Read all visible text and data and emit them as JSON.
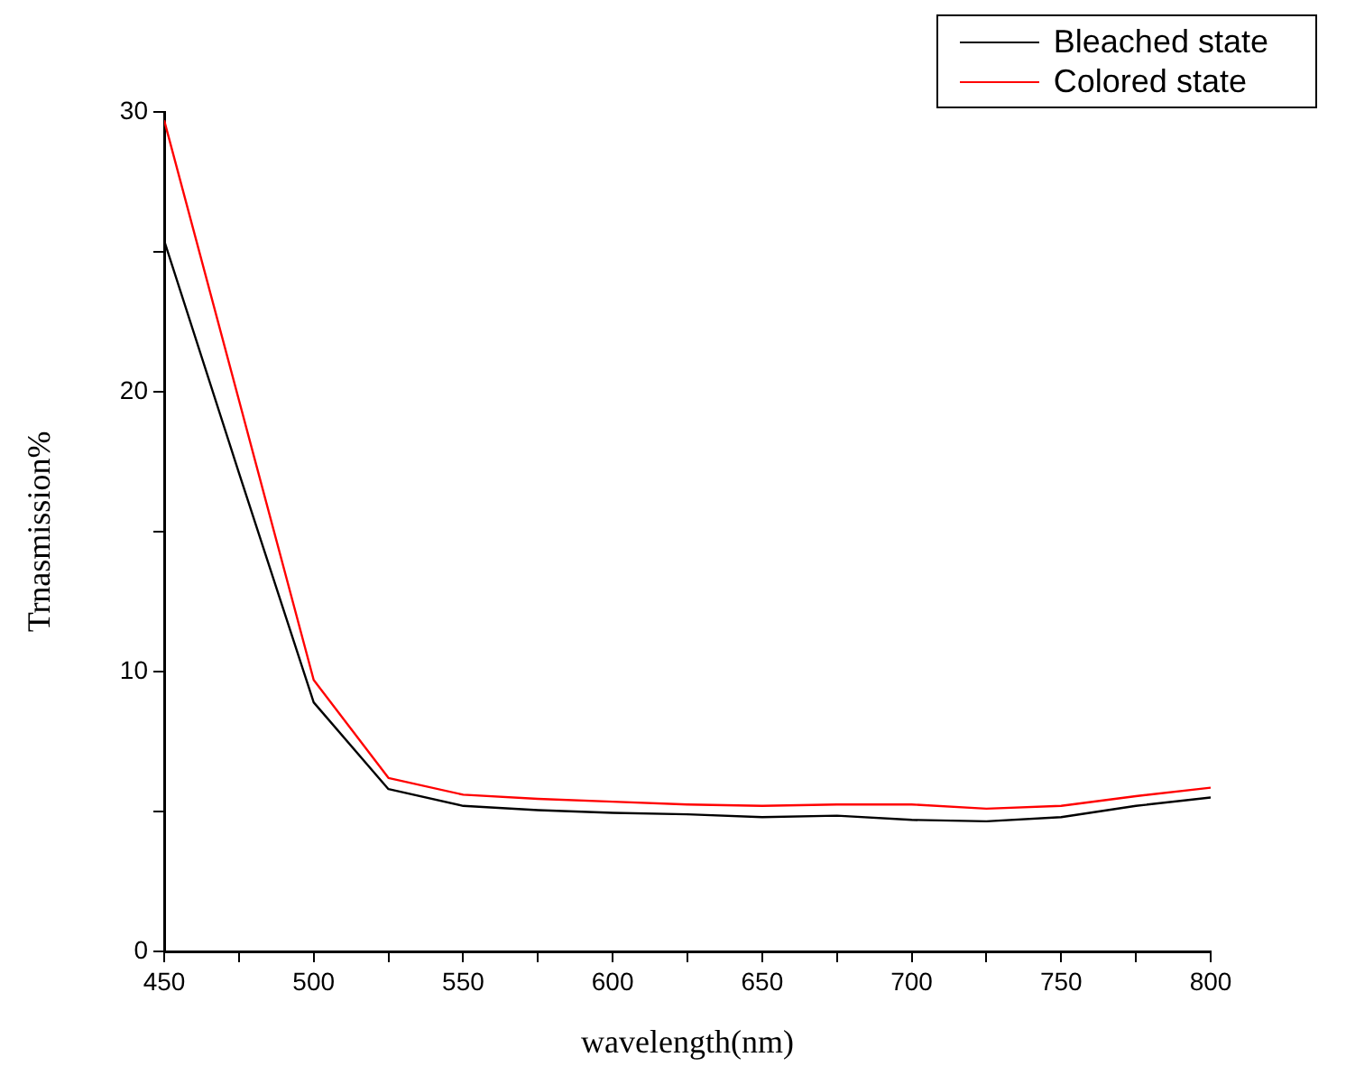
{
  "chart_data": {
    "type": "line",
    "xlabel": "wavelength(nm)",
    "ylabel": "Trnasmission%",
    "legend": "top right",
    "grid": false,
    "marker": "none",
    "line_style": "solid",
    "x": [
      450,
      475,
      500,
      525,
      550,
      575,
      600,
      625,
      650,
      675,
      700,
      725,
      750,
      775,
      800
    ],
    "series": [
      {
        "name": "Bleached state",
        "color": "#000000",
        "values": [
          25.4,
          17.1,
          8.9,
          5.8,
          5.2,
          5.05,
          4.95,
          4.9,
          4.8,
          4.85,
          4.7,
          4.65,
          4.8,
          5.2,
          5.5
        ]
      },
      {
        "name": "Colored state",
        "color": "#ff0000",
        "values": [
          29.7,
          19.7,
          9.7,
          6.2,
          5.6,
          5.45,
          5.35,
          5.25,
          5.2,
          5.25,
          5.25,
          5.1,
          5.2,
          5.55,
          5.85
        ]
      }
    ],
    "xlim": [
      450,
      800
    ],
    "xticks": [
      450,
      {
        "value": 475,
        "label": null
      },
      500,
      {
        "value": 525,
        "label": null
      },
      550,
      {
        "value": 575,
        "label": null
      },
      600,
      {
        "value": 625,
        "label": null
      },
      650,
      {
        "value": 675,
        "label": null
      },
      700,
      {
        "value": 725,
        "label": null
      },
      750,
      {
        "value": 775,
        "label": null
      },
      800
    ],
    "ylim": [
      0,
      30
    ],
    "yticks": [
      0,
      {
        "value": 5,
        "label": null
      },
      10,
      {
        "value": 15,
        "label": null
      },
      20,
      {
        "value": 25,
        "label": null
      },
      30
    ]
  }
}
